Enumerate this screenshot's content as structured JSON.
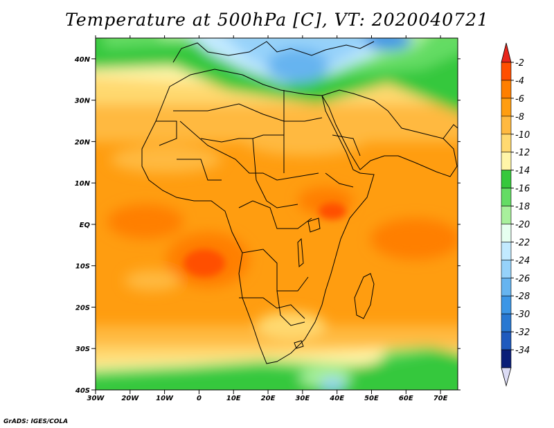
{
  "title": "Temperature at 500hPa [C], VT: 2020040721",
  "credit": "GrADS: IGES/COLA",
  "map": {
    "lon_range": [
      -30,
      75
    ],
    "lat_range": [
      -40,
      45
    ],
    "lat_ticks": [
      {
        "value": 40,
        "label": "40N"
      },
      {
        "value": 30,
        "label": "30N"
      },
      {
        "value": 20,
        "label": "20N"
      },
      {
        "value": 10,
        "label": "10N"
      },
      {
        "value": 0,
        "label": "EQ"
      },
      {
        "value": -10,
        "label": "10S"
      },
      {
        "value": -20,
        "label": "20S"
      },
      {
        "value": -30,
        "label": "30S"
      },
      {
        "value": -40,
        "label": "40S"
      }
    ],
    "lon_ticks": [
      {
        "value": -30,
        "label": "30W"
      },
      {
        "value": -20,
        "label": "20W"
      },
      {
        "value": -10,
        "label": "10W"
      },
      {
        "value": 0,
        "label": "0"
      },
      {
        "value": 10,
        "label": "10E"
      },
      {
        "value": 20,
        "label": "20E"
      },
      {
        "value": 30,
        "label": "30E"
      },
      {
        "value": 40,
        "label": "40E"
      },
      {
        "value": 50,
        "label": "50E"
      },
      {
        "value": 60,
        "label": "60E"
      },
      {
        "value": 70,
        "label": "70E"
      }
    ]
  },
  "colorbar": {
    "levels": [
      {
        "label": "-2",
        "color": "#ff4f00"
      },
      {
        "label": "-4",
        "color": "#ff7f00"
      },
      {
        "label": "-6",
        "color": "#ff9d10"
      },
      {
        "label": "-8",
        "color": "#ffb940"
      },
      {
        "label": "-10",
        "color": "#ffd970"
      },
      {
        "label": "-12",
        "color": "#fff5a8"
      },
      {
        "label": "-14",
        "color": "#36c83c"
      },
      {
        "label": "-16",
        "color": "#64dc64"
      },
      {
        "label": "-18",
        "color": "#a8f09c"
      },
      {
        "label": "-20",
        "color": "#e6fff0"
      },
      {
        "label": "-22",
        "color": "#c2eaff"
      },
      {
        "label": "-24",
        "color": "#96d2fa"
      },
      {
        "label": "-26",
        "color": "#66b4f0"
      },
      {
        "label": "-28",
        "color": "#3c96e6"
      },
      {
        "label": "-30",
        "color": "#2878d2"
      },
      {
        "label": "-32",
        "color": "#1e5abe"
      },
      {
        "label": "-34",
        "color": "#0a1e78"
      }
    ],
    "top_arrow_color": "#e8261c",
    "bottom_arrow_color": "#dcdcf5"
  }
}
